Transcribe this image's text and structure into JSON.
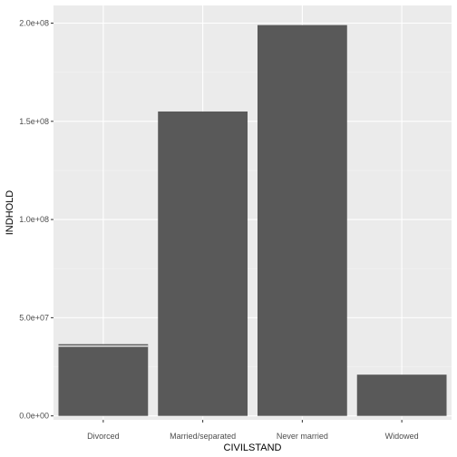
{
  "chart_data": {
    "type": "bar",
    "title": "",
    "xlabel": "CIVILSTAND",
    "ylabel": "INDHOLD",
    "categories": [
      "Divorced",
      "Married/separated",
      "Never married",
      "Widowed"
    ],
    "stacks": [
      [
        35500000,
        1000000
      ],
      [
        155000000
      ],
      [
        199000000
      ],
      [
        21000000
      ]
    ],
    "ylim": [
      -2000000,
      209000000
    ],
    "yticks": [
      0,
      50000000,
      100000000,
      150000000,
      200000000
    ],
    "ytick_labels": [
      "0.0e+00",
      "5.0e+07",
      "1.0e+08",
      "1.5e+08",
      "2.0e+08"
    ],
    "grid": true,
    "legend": "none",
    "colors": {
      "bar": "#595959",
      "panel": "#ebebeb",
      "grid_major": "#ffffff",
      "grid_minor": "#f3f3f3",
      "bar_separator": "#ffffff"
    }
  }
}
